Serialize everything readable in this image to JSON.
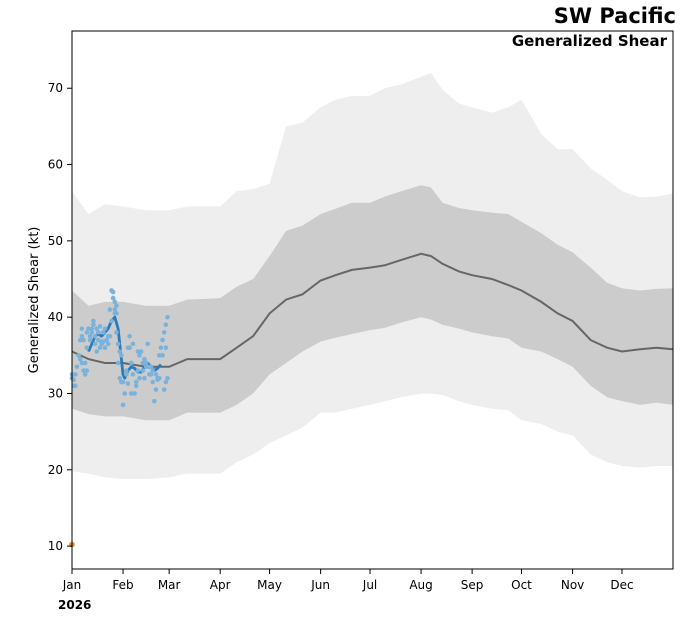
{
  "chart_data": {
    "type": "line",
    "title": "SW Pacific",
    "subtitle": "Generalized Shear",
    "ylabel": "Generalized Shear (kt)",
    "xlabel": "",
    "year_label": "2026",
    "ylim": [
      7,
      77.5
    ],
    "xlim": [
      0,
      365
    ],
    "yticks": [
      10,
      20,
      30,
      40,
      50,
      60,
      70
    ],
    "month_ticks": [
      {
        "label": "Jan",
        "day": 0
      },
      {
        "label": "Feb",
        "day": 31
      },
      {
        "label": "Mar",
        "day": 59
      },
      {
        "label": "Apr",
        "day": 90
      },
      {
        "label": "May",
        "day": 120
      },
      {
        "label": "Jun",
        "day": 151
      },
      {
        "label": "Jul",
        "day": 181
      },
      {
        "label": "Aug",
        "day": 212
      },
      {
        "label": "Sep",
        "day": 243
      },
      {
        "label": "Oct",
        "day": 273
      },
      {
        "label": "Nov",
        "day": 304
      },
      {
        "label": "Dec",
        "day": 334
      }
    ],
    "climatology_days": [
      0,
      10,
      20,
      31,
      45,
      59,
      70,
      90,
      100,
      110,
      120,
      130,
      140,
      151,
      160,
      170,
      181,
      190,
      200,
      212,
      218,
      225,
      235,
      243,
      255,
      265,
      273,
      285,
      295,
      304,
      315,
      325,
      334,
      345,
      355,
      365
    ],
    "mean": [
      35.5,
      34.5,
      34.0,
      34.0,
      33.5,
      33.5,
      34.5,
      34.5,
      36.0,
      37.5,
      40.5,
      42.3,
      43.0,
      44.8,
      45.5,
      46.2,
      46.5,
      46.8,
      47.5,
      48.3,
      48.0,
      47.0,
      46.0,
      45.5,
      45.0,
      44.2,
      43.5,
      42.0,
      40.5,
      39.5,
      37.0,
      36.0,
      35.5,
      35.8,
      36.0,
      35.8
    ],
    "inner_upper": [
      43.5,
      41.5,
      42.0,
      42.0,
      41.5,
      41.5,
      42.3,
      42.5,
      44.0,
      45.0,
      48.0,
      51.3,
      52.0,
      53.5,
      54.2,
      55.0,
      55.0,
      55.8,
      56.5,
      57.3,
      57.0,
      55.0,
      54.3,
      54.0,
      53.7,
      53.5,
      52.5,
      51.0,
      49.5,
      48.5,
      46.5,
      44.5,
      43.8,
      43.5,
      43.7,
      43.8
    ],
    "inner_lower": [
      28.0,
      27.3,
      27.0,
      27.0,
      26.5,
      26.5,
      27.5,
      27.5,
      28.5,
      30.0,
      32.5,
      34.0,
      35.5,
      36.8,
      37.3,
      37.8,
      38.3,
      38.6,
      39.3,
      40.0,
      39.7,
      39.0,
      38.5,
      38.0,
      37.5,
      37.2,
      36.0,
      35.5,
      34.5,
      33.5,
      31.0,
      29.5,
      29.0,
      28.5,
      28.8,
      28.5
    ],
    "outer_upper": [
      56.5,
      53.5,
      54.8,
      54.5,
      54.0,
      54.0,
      54.5,
      54.5,
      56.5,
      56.8,
      57.5,
      65.0,
      65.5,
      67.5,
      68.5,
      69.0,
      69.0,
      70.0,
      70.5,
      71.5,
      72.0,
      69.8,
      68.0,
      67.5,
      66.8,
      67.5,
      68.5,
      64.0,
      62.0,
      62.0,
      59.5,
      58.0,
      56.5,
      55.7,
      55.8,
      56.2
    ],
    "outer_lower": [
      19.8,
      19.5,
      19.0,
      18.8,
      18.8,
      19.0,
      19.5,
      19.5,
      21.0,
      22.0,
      23.5,
      24.5,
      25.5,
      27.5,
      27.5,
      28.0,
      28.5,
      29.0,
      29.5,
      30.0,
      30.0,
      29.8,
      29.0,
      28.5,
      28.0,
      27.8,
      26.5,
      26.0,
      25.0,
      24.5,
      22.0,
      21.0,
      20.5,
      20.3,
      20.5,
      20.5
    ],
    "current_days": [
      10,
      12,
      14,
      16,
      18,
      20,
      22,
      24,
      26,
      28,
      30,
      31,
      32,
      33,
      34,
      36,
      38,
      40,
      42,
      44,
      46,
      48,
      50,
      52,
      54
    ],
    "current_mean": [
      35.5,
      36.5,
      37.5,
      37.8,
      37.5,
      38.0,
      38.5,
      39.5,
      40.0,
      38.5,
      34.5,
      32.5,
      32.0,
      32.5,
      33.0,
      33.5,
      33.3,
      32.8,
      32.8,
      33.5,
      34.0,
      33.5,
      33.0,
      33.3,
      33.8
    ],
    "obs_days": [
      0,
      1,
      2,
      3,
      4,
      5,
      6,
      7,
      8,
      9,
      10,
      11,
      12,
      13,
      14,
      15,
      16,
      17,
      18,
      19,
      20,
      21,
      22,
      23,
      24,
      25,
      26,
      27,
      28,
      29,
      30,
      31,
      32,
      33,
      34,
      35,
      36,
      37,
      38,
      39,
      40,
      41,
      42,
      43,
      44,
      45,
      46,
      47,
      48,
      49,
      50,
      51,
      52,
      53,
      54,
      55,
      56,
      57,
      58,
      0,
      1,
      2,
      5,
      6,
      8,
      9,
      11,
      12,
      14,
      16,
      18,
      20,
      22,
      24,
      25,
      26,
      27,
      28,
      29,
      30,
      31,
      33,
      35,
      37,
      39,
      41,
      43,
      45,
      47,
      49,
      51,
      53,
      55,
      57,
      6,
      7,
      9,
      13,
      15,
      17,
      19,
      23,
      25,
      26,
      27,
      34,
      36,
      40,
      44,
      48,
      52,
      56,
      57,
      58
    ],
    "obs_values": [
      32.5,
      31.8,
      31.0,
      33.5,
      35.0,
      37.0,
      38.5,
      33.0,
      32.5,
      36.0,
      38.5,
      37.5,
      38.0,
      39.5,
      37.5,
      38.5,
      37.0,
      38.8,
      36.5,
      38.0,
      36.0,
      37.0,
      37.5,
      41.0,
      43.5,
      42.5,
      40.5,
      38.0,
      34.0,
      32.0,
      31.5,
      28.5,
      30.0,
      33.0,
      36.0,
      37.5,
      34.0,
      32.5,
      30.0,
      31.5,
      33.0,
      35.0,
      35.5,
      33.0,
      32.0,
      34.0,
      36.5,
      33.5,
      32.5,
      31.5,
      29.0,
      30.5,
      32.0,
      35.0,
      36.0,
      37.0,
      38.0,
      39.0,
      40.0,
      32.0,
      31.0,
      32.5,
      34.5,
      37.5,
      34.0,
      33.0,
      37.0,
      38.5,
      36.5,
      38.0,
      36.8,
      38.5,
      36.5,
      39.5,
      43.3,
      42.0,
      41.5,
      36.5,
      35.5,
      35.0,
      31.5,
      32.5,
      36.0,
      36.5,
      31.0,
      32.0,
      34.0,
      33.5,
      32.5,
      33.0,
      32.5,
      32.0,
      35.0,
      36.0,
      34.0,
      37.0,
      38.0,
      39.0,
      35.5,
      36.0,
      36.8,
      37.5,
      42.5,
      41.0,
      40.5,
      31.3,
      30.0,
      35.5,
      34.5,
      33.5,
      31.8,
      30.5,
      31.5,
      32.0
    ],
    "outlier": {
      "day": 0,
      "value": 10.2
    },
    "colors": {
      "outer_band": "#eeeeee",
      "inner_band": "#cccccc",
      "mean_line": "#666666",
      "current_line": "#2b7bba",
      "observations": "#7ab2dc",
      "outlier": "#e08a3a"
    }
  }
}
